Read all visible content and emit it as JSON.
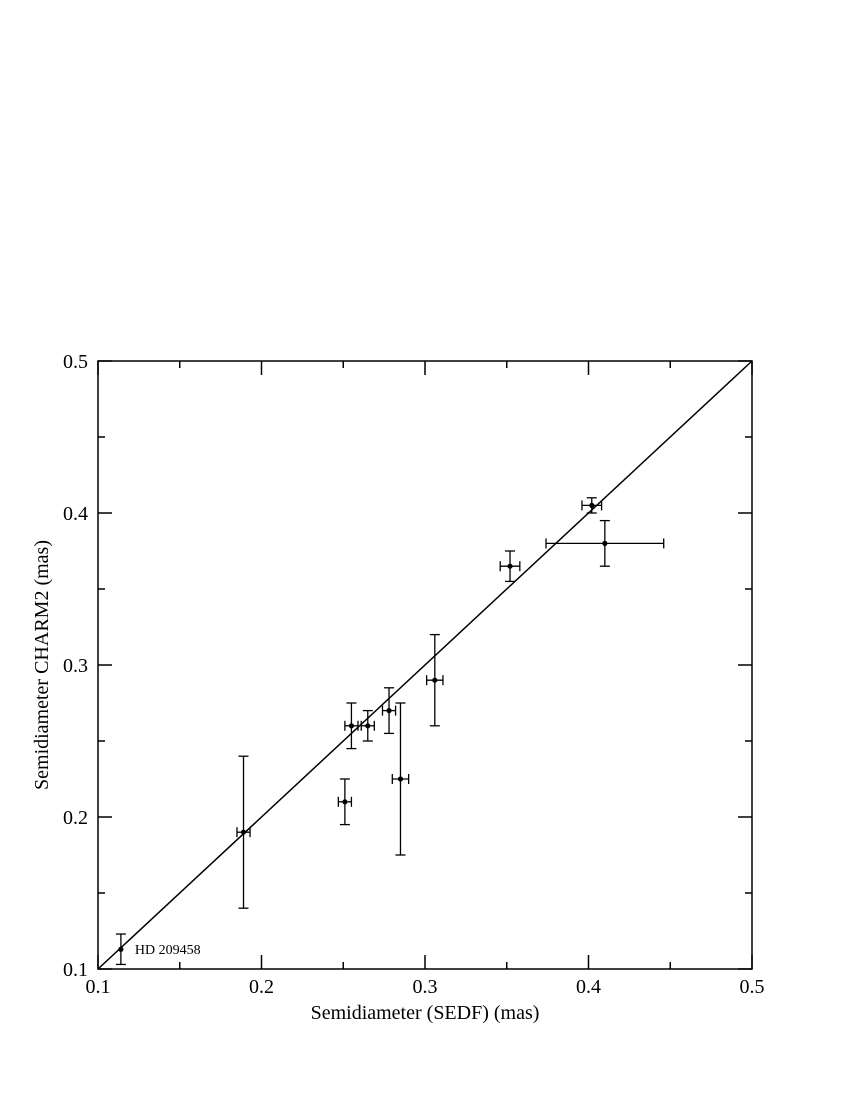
{
  "chart_data": {
    "type": "scatter",
    "title": "",
    "xlabel": "Semidiameter (SEDF) (mas)",
    "ylabel": "Semidiameter CHARM2 (mas)",
    "xlim": [
      0.1,
      0.5
    ],
    "ylim": [
      0.1,
      0.5
    ],
    "x_ticks": [
      0.1,
      0.2,
      0.3,
      0.4,
      0.5
    ],
    "x_tick_labels": [
      "0.1",
      "0.2",
      "0.3",
      "0.4",
      "0.5"
    ],
    "y_ticks": [
      0.1,
      0.2,
      0.3,
      0.4,
      0.5
    ],
    "y_tick_labels": [
      "0.1",
      "0.2",
      "0.3",
      "0.4",
      "0.5"
    ],
    "grid": false,
    "reference_line": {
      "from": [
        0.1,
        0.1
      ],
      "to": [
        0.5,
        0.5
      ]
    },
    "points": [
      {
        "x": 0.114,
        "y": 0.113,
        "xerr": 0.0,
        "yerr": 0.01,
        "label": "HD 209458"
      },
      {
        "x": 0.189,
        "y": 0.19,
        "xerr": 0.004,
        "yerr": 0.05
      },
      {
        "x": 0.251,
        "y": 0.21,
        "xerr": 0.004,
        "yerr": 0.015
      },
      {
        "x": 0.255,
        "y": 0.26,
        "xerr": 0.004,
        "yerr": 0.015
      },
      {
        "x": 0.265,
        "y": 0.26,
        "xerr": 0.004,
        "yerr": 0.01
      },
      {
        "x": 0.278,
        "y": 0.27,
        "xerr": 0.004,
        "yerr": 0.015
      },
      {
        "x": 0.285,
        "y": 0.225,
        "xerr": 0.005,
        "yerr": 0.05
      },
      {
        "x": 0.306,
        "y": 0.29,
        "xerr": 0.005,
        "yerr": 0.03
      },
      {
        "x": 0.352,
        "y": 0.365,
        "xerr": 0.006,
        "yerr": 0.01
      },
      {
        "x": 0.402,
        "y": 0.405,
        "xerr": 0.006,
        "yerr": 0.005
      },
      {
        "x": 0.41,
        "y": 0.38,
        "xerr": 0.036,
        "yerr": 0.015
      }
    ]
  }
}
